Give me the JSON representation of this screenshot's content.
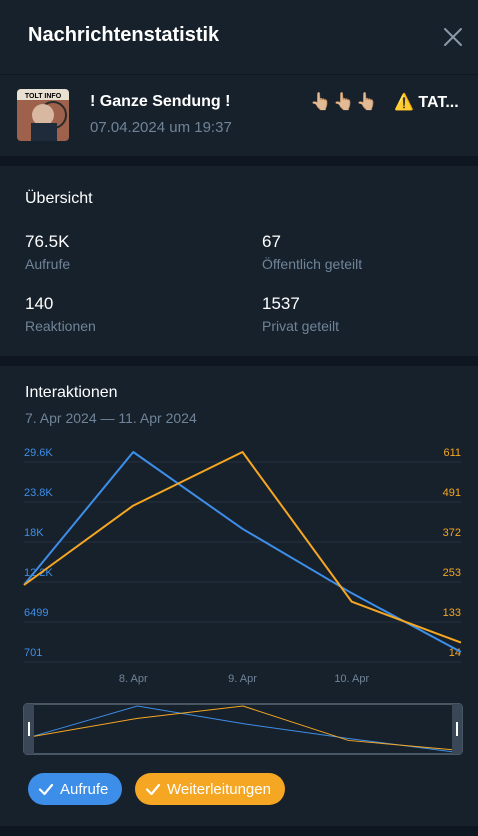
{
  "header": {
    "title": "Nachrichtenstatistik"
  },
  "message": {
    "title": "! Ganze Sendung  !",
    "emojis": "👆🏼👆🏼👆🏼",
    "extra_warning": "⚠️",
    "extra_text": "TAT...",
    "date": "07.04.2024 um 19:37",
    "thumb_text": "TOLT INFO"
  },
  "overview": {
    "title": "Übersicht",
    "stats": [
      {
        "value": "76.5K",
        "label": "Aufrufe"
      },
      {
        "value": "67",
        "label": "Öffentlich geteilt"
      },
      {
        "value": "140",
        "label": "Reaktionen"
      },
      {
        "value": "1537",
        "label": "Privat geteilt"
      }
    ]
  },
  "interactions": {
    "title": "Interaktionen",
    "range": "7. Apr 2024 — 11. Apr 2024"
  },
  "colors": {
    "views": "#3d8ee8",
    "forwards": "#f5a623",
    "bg": "#17212b",
    "grid": "#24313f",
    "muted": "#708499"
  },
  "chart_data": {
    "type": "line",
    "x": [
      "7. Apr",
      "8. Apr",
      "9. Apr",
      "10. Apr",
      "11. Apr"
    ],
    "x_ticks": [
      "8. Apr",
      "9. Apr",
      "10. Apr"
    ],
    "left_axis": {
      "ticks": [
        "29.6K",
        "23.8K",
        "18K",
        "12.2K",
        "6499",
        "701"
      ],
      "ylim": [
        701,
        29600
      ]
    },
    "right_axis": {
      "ticks": [
        "611",
        "491",
        "372",
        "253",
        "133",
        "14"
      ],
      "ylim": [
        14,
        611
      ]
    },
    "series": [
      {
        "name": "Aufrufe",
        "axis": "left",
        "values": [
          10400,
          29600,
          18500,
          9200,
          701
        ]
      },
      {
        "name": "Weiterleitungen",
        "axis": "right",
        "values": [
          214,
          451,
          611,
          164,
          42
        ]
      }
    ]
  },
  "legend": {
    "views_label": "Aufrufe",
    "forwards_label": "Weiterleitungen"
  }
}
